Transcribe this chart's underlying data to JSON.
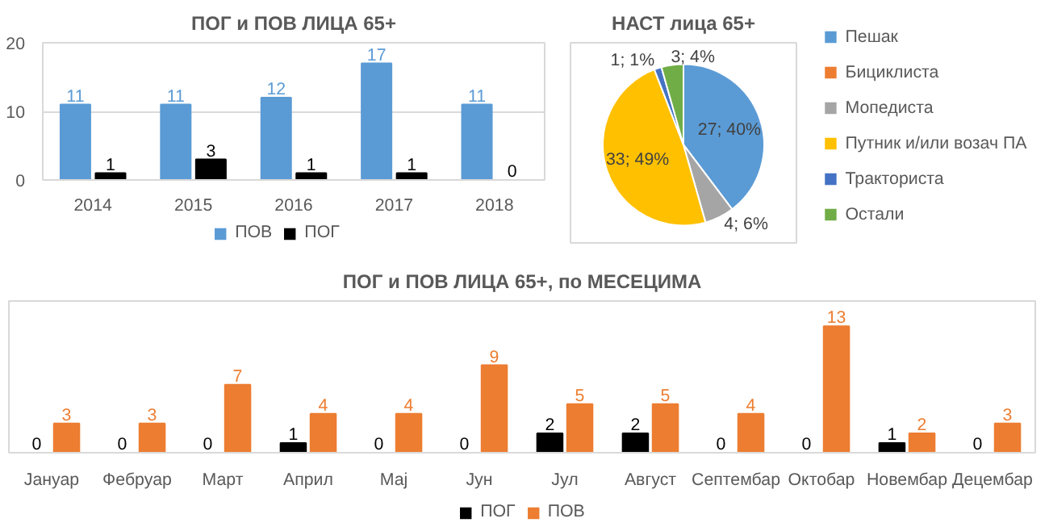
{
  "chart_data": [
    {
      "type": "bar",
      "title": "ПОГ и ПОВ ЛИЦА 65+",
      "categories": [
        "2014",
        "2015",
        "2016",
        "2017",
        "2018"
      ],
      "series": [
        {
          "name": "ПОВ",
          "color": "#5b9bd5",
          "values": [
            11,
            11,
            12,
            17,
            11
          ]
        },
        {
          "name": "ПОГ",
          "color": "#000000",
          "values": [
            1,
            3,
            1,
            1,
            0
          ]
        }
      ],
      "ylim": [
        0,
        20
      ],
      "yticks": [
        0,
        10,
        20
      ],
      "grid": "y",
      "legend": "bottom",
      "data_labels": true
    },
    {
      "type": "pie",
      "title": "НАСТ лица 65+",
      "categories": [
        "Пешак",
        "Бициклиста",
        "Мопедиста",
        "Путник и/или возач ПА",
        "Тракториста",
        "Остали"
      ],
      "values": [
        27,
        0,
        4,
        33,
        1,
        3
      ],
      "colors": [
        "#5b9bd5",
        "#ed7d31",
        "#a5a5a5",
        "#ffc000",
        "#4472c4",
        "#70ad47"
      ],
      "value_labels": [
        "27; 40%",
        null,
        "4; 6%",
        "33; 49%",
        "1; 1%",
        "3; 4%"
      ],
      "legend": "right"
    },
    {
      "type": "bar",
      "title": "ПОГ и ПОВ ЛИЦА 65+, по МЕСЕЦИМА",
      "categories": [
        "Јануар",
        "Фебруар",
        "Март",
        "Април",
        "Мај",
        "Јун",
        "Јул",
        "Август",
        "Септембар",
        "Октобар",
        "Новембар",
        "Децембар"
      ],
      "series": [
        {
          "name": "ПОГ",
          "color": "#000000",
          "values": [
            0,
            0,
            0,
            1,
            0,
            0,
            2,
            2,
            0,
            0,
            1,
            0
          ]
        },
        {
          "name": "ПОВ",
          "color": "#ed7d31",
          "values": [
            3,
            3,
            7,
            4,
            4,
            9,
            5,
            5,
            4,
            13,
            2,
            3
          ]
        }
      ],
      "tick_labels": "x",
      "legend": "bottom",
      "data_labels": true
    }
  ]
}
